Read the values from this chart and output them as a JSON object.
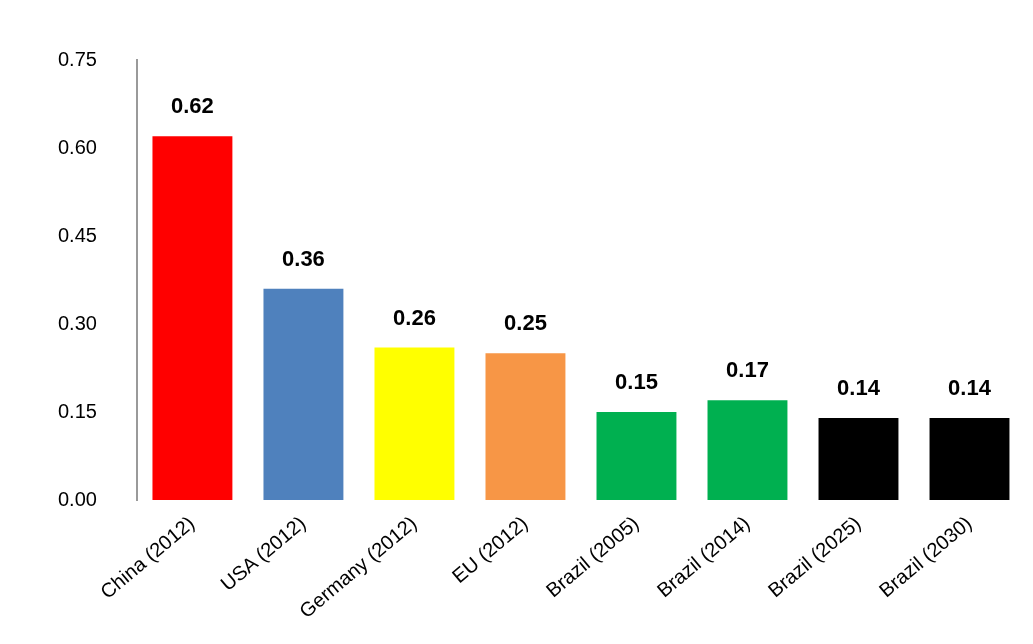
{
  "chart_data": {
    "type": "bar",
    "categories": [
      "China (2012)",
      "USA (2012)",
      "Germany (2012)",
      "EU (2012)",
      "Brazil (2005)",
      "Brazil (2014)",
      "Brazil (2025)",
      "Brazil (2030)"
    ],
    "values": [
      0.62,
      0.36,
      0.26,
      0.25,
      0.15,
      0.17,
      0.14,
      0.14
    ],
    "colors": [
      "#ff0000",
      "#4f81bd",
      "#ffff00",
      "#f79646",
      "#00b050",
      "#00b050",
      "#000000",
      "#000000"
    ],
    "ylim": [
      0,
      0.75
    ],
    "yticks": [
      {
        "value": 0,
        "label": "0.00"
      },
      {
        "value": 0.15,
        "label": "0.15"
      },
      {
        "value": 0.3,
        "label": "0.30"
      },
      {
        "value": 0.45,
        "label": "0.45"
      },
      {
        "value": 0.6,
        "label": "0.60"
      },
      {
        "value": 0.75,
        "label": "0.75"
      }
    ],
    "data_labels": true,
    "grid": false,
    "legend": false
  }
}
